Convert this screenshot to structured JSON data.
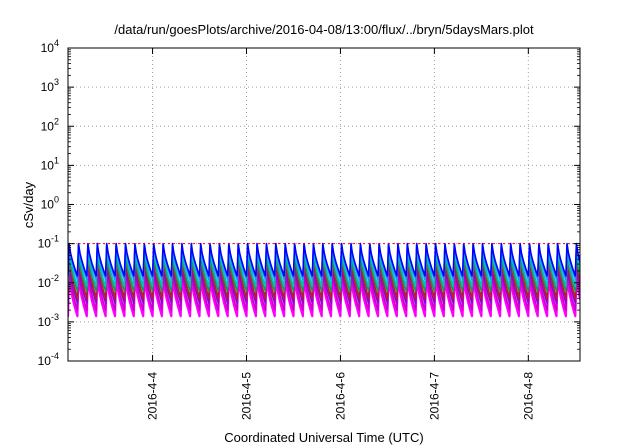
{
  "chart_data": {
    "type": "line",
    "title": "/data/run/goesPlots/archive/2016-04-08/13:00/flux/../bryn/5daysMars.plot",
    "xlabel": "Coordinated Universal Time (UTC)",
    "ylabel": "cSv/day",
    "yscale": "log",
    "ylim": [
      0.0001,
      10000
    ],
    "y_ticks": [
      {
        "value": 0.0001,
        "base": "10",
        "exp": "-4"
      },
      {
        "value": 0.001,
        "base": "10",
        "exp": "-3"
      },
      {
        "value": 0.01,
        "base": "10",
        "exp": "-2"
      },
      {
        "value": 0.1,
        "base": "10",
        "exp": "-1"
      },
      {
        "value": 1,
        "base": "10",
        "exp": "0"
      },
      {
        "value": 10,
        "base": "10",
        "exp": "1"
      },
      {
        "value": 100,
        "base": "10",
        "exp": "2"
      },
      {
        "value": 1000,
        "base": "10",
        "exp": "3"
      },
      {
        "value": 10000,
        "base": "10",
        "exp": "4"
      }
    ],
    "xlim_days": [
      3.1,
      8.55
    ],
    "x_ticks": [
      {
        "label": "2016-4-4",
        "day": 4
      },
      {
        "label": "2016-4-5",
        "day": 5
      },
      {
        "label": "2016-4-6",
        "day": 6
      },
      {
        "label": "2016-4-7",
        "day": 7
      },
      {
        "label": "2016-4-8",
        "day": 8
      }
    ],
    "grid": true,
    "sawtooth_period_days": 0.1,
    "series": [
      {
        "color": "#ff00ff",
        "peak": 0.014,
        "trough": 0.0014
      },
      {
        "color": "#cc00cc",
        "peak": 0.02,
        "trough": 0.002
      },
      {
        "color": "#9400d3",
        "peak": 0.028,
        "trough": 0.003
      },
      {
        "color": "#b22222",
        "peak": 0.045,
        "trough": 0.004
      },
      {
        "color": "#2e8b57",
        "peak": 0.05,
        "trough": 0.006
      },
      {
        "color": "#00bfbf",
        "peak": 0.075,
        "trough": 0.008
      },
      {
        "color": "#1e90ff",
        "peak": 0.095,
        "trough": 0.012
      },
      {
        "color": "#0000ff",
        "peak": 0.1,
        "trough": 0.015
      }
    ],
    "reference_level": {
      "value": 0.1,
      "color": "#ff0000"
    }
  }
}
